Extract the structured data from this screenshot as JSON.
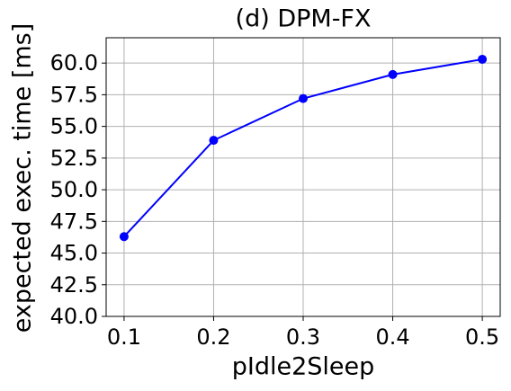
{
  "chart_data": {
    "type": "line",
    "title": "(d) DPM-FX",
    "x_label": "pIdle2Sleep",
    "y_label": "expected exec. time [ms]",
    "x": [
      0.1,
      0.2,
      0.3,
      0.4,
      0.5
    ],
    "series": [
      {
        "name": "DPM-FX",
        "color": "#0000ff",
        "values": [
          46.3,
          53.9,
          57.2,
          59.1,
          60.3
        ]
      }
    ],
    "xlim": [
      0.08,
      0.52
    ],
    "xticks": [
      0.1,
      0.2,
      0.3,
      0.4,
      0.5
    ],
    "ylim": [
      40,
      62
    ],
    "yticks": [
      {
        "value": 40,
        "label": "40.0"
      },
      42.5,
      {
        "value": 45,
        "label": "45.0"
      },
      47.5,
      {
        "value": 50,
        "label": "50.0"
      },
      52.5,
      {
        "value": 55,
        "label": "55.0"
      },
      57.5,
      {
        "value": 60,
        "label": "60.0"
      }
    ],
    "grid": true
  }
}
